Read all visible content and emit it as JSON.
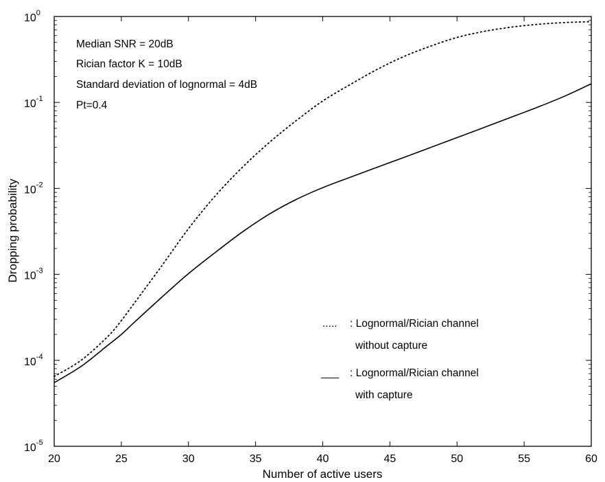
{
  "chart_data": {
    "type": "line",
    "title": "",
    "xlabel": "Number of active users",
    "ylabel": "Dropping probability",
    "xlim": [
      20,
      60
    ],
    "ylim": [
      1e-05,
      1
    ],
    "yscale": "log",
    "grid": false,
    "x_ticks": [
      "20",
      "25",
      "30",
      "35",
      "40",
      "45",
      "50",
      "55",
      "60"
    ],
    "y_ticks": [
      {
        "base": "10",
        "exp": "-5"
      },
      {
        "base": "10",
        "exp": "-4"
      },
      {
        "base": "10",
        "exp": "-3"
      },
      {
        "base": "10",
        "exp": "-2"
      },
      {
        "base": "10",
        "exp": "-1"
      },
      {
        "base": "10",
        "exp": "0"
      }
    ],
    "annotations": [
      "Median SNR = 20dB",
      "Rician factor K = 10dB",
      "Standard deviation of lognormal = 4dB",
      "Pt=0.4"
    ],
    "legend_position": "center-right",
    "series": [
      {
        "name": "Lognormal/Rician channel without capture",
        "legend_marker": ".....",
        "legend_lines": [
          ": Lognormal/Rician channel",
          "without capture"
        ],
        "style": "dotted",
        "x": [
          20,
          22,
          24,
          25,
          26,
          28,
          30,
          32,
          34,
          36,
          38,
          40,
          42,
          44,
          46,
          48,
          50,
          52,
          54,
          56,
          58,
          60
        ],
        "y": [
          6.5e-05,
          0.0001,
          0.00019,
          0.00029,
          0.00047,
          0.00125,
          0.0034,
          0.0082,
          0.0175,
          0.034,
          0.061,
          0.104,
          0.16,
          0.24,
          0.34,
          0.45,
          0.57,
          0.67,
          0.75,
          0.81,
          0.85,
          0.87
        ]
      },
      {
        "name": "Lognormal/Rician channel with capture",
        "legend_marker": "___",
        "legend_lines": [
          ": Lognormal/Rician channel",
          "with capture"
        ],
        "style": "solid",
        "x": [
          20,
          22,
          24,
          25,
          26,
          28,
          30,
          32,
          34,
          36,
          38,
          40,
          42,
          44,
          46,
          48,
          50,
          52,
          54,
          56,
          58,
          60
        ],
        "y": [
          5.5e-05,
          8.5e-05,
          0.00015,
          0.0002,
          0.00028,
          0.00054,
          0.00102,
          0.0018,
          0.0031,
          0.005,
          0.0074,
          0.0102,
          0.0134,
          0.0175,
          0.0228,
          0.0298,
          0.039,
          0.051,
          0.067,
          0.088,
          0.118,
          0.165
        ]
      }
    ]
  }
}
